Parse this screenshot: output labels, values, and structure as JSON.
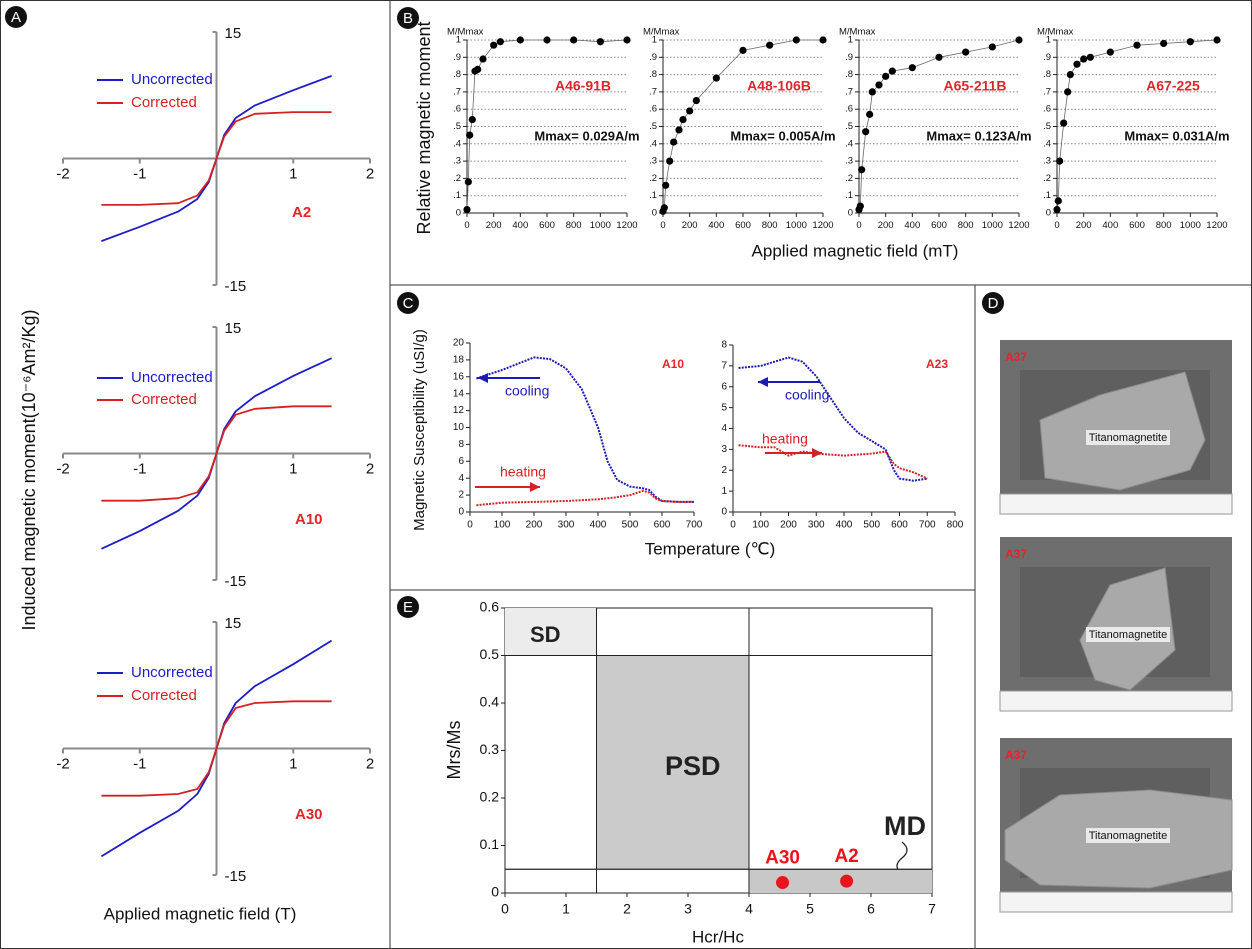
{
  "panel_labels": [
    "A",
    "B",
    "C",
    "D",
    "E"
  ],
  "chart_data": [
    {
      "type": "line",
      "axes": "crossing",
      "legend": "line",
      "sample": "A2",
      "ylabel": "Induced magnetic moment(10⁻⁶Am²/Kg)",
      "xlabel": "Applied magnetic field (T)",
      "xlim": [
        -2,
        2
      ],
      "ylim": [
        -15,
        15
      ],
      "xticks": [
        -2,
        -1,
        1,
        2
      ],
      "yticks": [
        -15,
        15
      ],
      "x": [
        -1.5,
        -1,
        -0.5,
        -0.25,
        -0.1,
        0,
        0.1,
        0.25,
        0.5,
        1,
        1.5
      ],
      "series": [
        {
          "name": "Uncorrected",
          "color": "#1c1cc8",
          "values": [
            -9.8,
            -8.1,
            -6.3,
            -4.8,
            -2.8,
            0,
            2.8,
            4.8,
            6.3,
            8.1,
            9.8
          ]
        },
        {
          "name": "Corrected",
          "color": "#d42222",
          "values": [
            -5.5,
            -5.5,
            -5.3,
            -4.4,
            -2.6,
            0,
            2.6,
            4.4,
            5.3,
            5.5,
            5.5
          ]
        }
      ]
    },
    {
      "type": "line",
      "axes": "crossing",
      "legend": "line",
      "sample": "A10",
      "xlim": [
        -2,
        2
      ],
      "ylim": [
        -15,
        15
      ],
      "xticks": [
        -2,
        -1,
        1,
        2
      ],
      "yticks": [
        -15,
        15
      ],
      "x": [
        -1.5,
        -1,
        -0.5,
        -0.25,
        -0.1,
        0,
        0.1,
        0.25,
        0.5,
        1,
        1.5
      ],
      "series": [
        {
          "name": "Uncorrected",
          "color": "#1c1cc8",
          "values": [
            -11.3,
            -9.2,
            -6.8,
            -5.0,
            -2.9,
            0,
            2.9,
            5.0,
            6.8,
            9.2,
            11.3
          ]
        },
        {
          "name": "Corrected",
          "color": "#d42222",
          "values": [
            -5.6,
            -5.6,
            -5.3,
            -4.6,
            -2.7,
            0,
            2.7,
            4.6,
            5.3,
            5.6,
            5.6
          ]
        }
      ]
    },
    {
      "type": "line",
      "axes": "crossing",
      "legend": "line",
      "sample": "A30",
      "xlim": [
        -2,
        2
      ],
      "ylim": [
        -15,
        15
      ],
      "xticks": [
        -2,
        -1,
        1,
        2
      ],
      "yticks": [
        -15,
        15
      ],
      "x": [
        -1.5,
        -1,
        -0.5,
        -0.25,
        -0.1,
        0,
        0.1,
        0.25,
        0.5,
        1,
        1.5
      ],
      "series": [
        {
          "name": "Uncorrected",
          "color": "#1c1cc8",
          "values": [
            -12.8,
            -10,
            -7.4,
            -5.4,
            -3,
            0,
            3,
            5.4,
            7.4,
            10,
            12.8
          ]
        },
        {
          "name": "Corrected",
          "color": "#d42222",
          "values": [
            -5.6,
            -5.6,
            -5.4,
            -4.8,
            -2.8,
            0,
            2.8,
            4.8,
            5.4,
            5.6,
            5.6
          ]
        }
      ]
    },
    {
      "type": "line",
      "axes": "left-bottom",
      "grid": true,
      "markers": true,
      "y_unit": "M/Mmax",
      "sample": "A46-91B",
      "note": "Mmax= 0.029A/m",
      "ylabel": "Relative magnetic moment",
      "xlabel": "Applied magnetic field (mT)",
      "xlim": [
        0,
        1200
      ],
      "ylim": [
        0,
        1
      ],
      "xticks": [
        0,
        200,
        400,
        600,
        800,
        1000,
        1200
      ],
      "yticks": [
        0,
        {
          "value": 0.1,
          "label": ".1"
        },
        {
          "value": 0.2,
          "label": ".2"
        },
        {
          "value": 0.3,
          "label": ".3"
        },
        {
          "value": 0.4,
          "label": ".4"
        },
        {
          "value": 0.5,
          "label": ".5"
        },
        {
          "value": 0.6,
          "label": ".6"
        },
        {
          "value": 0.7,
          "label": ".7"
        },
        {
          "value": 0.8,
          "label": ".8"
        },
        {
          "value": 0.9,
          "label": ".9"
        },
        1
      ],
      "x": [
        0,
        10,
        20,
        40,
        60,
        80,
        120,
        200,
        250,
        400,
        600,
        800,
        1000,
        1200
      ],
      "series": [
        {
          "color": "#000000",
          "values": [
            0.02,
            0.18,
            0.45,
            0.54,
            0.82,
            0.83,
            0.89,
            0.97,
            0.99,
            1,
            1,
            1,
            0.99,
            1
          ]
        }
      ]
    },
    {
      "type": "line",
      "axes": "left-bottom",
      "grid": true,
      "markers": true,
      "y_unit": "M/Mmax",
      "sample": "A48-106B",
      "note": "Mmax= 0.005A/m",
      "xlim": [
        0,
        1200
      ],
      "ylim": [
        0,
        1
      ],
      "xticks": [
        0,
        200,
        400,
        600,
        800,
        1000,
        1200
      ],
      "yticks": [
        0,
        {
          "value": 0.1,
          "label": ".1"
        },
        {
          "value": 0.2,
          "label": ".2"
        },
        {
          "value": 0.3,
          "label": ".3"
        },
        {
          "value": 0.4,
          "label": ".4"
        },
        {
          "value": 0.5,
          "label": ".5"
        },
        {
          "value": 0.6,
          "label": ".6"
        },
        {
          "value": 0.7,
          "label": ".7"
        },
        {
          "value": 0.8,
          "label": ".8"
        },
        {
          "value": 0.9,
          "label": ".9"
        },
        1
      ],
      "x": [
        0,
        10,
        20,
        50,
        80,
        120,
        150,
        200,
        250,
        400,
        600,
        800,
        1000,
        1200
      ],
      "series": [
        {
          "color": "#000000",
          "values": [
            0.01,
            0.03,
            0.16,
            0.3,
            0.41,
            0.48,
            0.54,
            0.59,
            0.65,
            0.78,
            0.94,
            0.97,
            1,
            1
          ]
        }
      ]
    },
    {
      "type": "line",
      "axes": "left-bottom",
      "grid": true,
      "markers": true,
      "y_unit": "M/Mmax",
      "sample": "A65-211B",
      "note": "Mmax= 0.123A/m",
      "xlim": [
        0,
        1200
      ],
      "ylim": [
        0,
        1
      ],
      "xticks": [
        0,
        200,
        400,
        600,
        800,
        1000,
        1200
      ],
      "yticks": [
        0,
        {
          "value": 0.1,
          "label": ".1"
        },
        {
          "value": 0.2,
          "label": ".2"
        },
        {
          "value": 0.3,
          "label": ".3"
        },
        {
          "value": 0.4,
          "label": ".4"
        },
        {
          "value": 0.5,
          "label": ".5"
        },
        {
          "value": 0.6,
          "label": ".6"
        },
        {
          "value": 0.7,
          "label": ".7"
        },
        {
          "value": 0.8,
          "label": ".8"
        },
        {
          "value": 0.9,
          "label": ".9"
        },
        1
      ],
      "x": [
        0,
        10,
        20,
        50,
        80,
        100,
        150,
        200,
        250,
        400,
        600,
        800,
        1000,
        1200
      ],
      "series": [
        {
          "color": "#000000",
          "values": [
            0.02,
            0.04,
            0.25,
            0.47,
            0.57,
            0.7,
            0.74,
            0.79,
            0.82,
            0.84,
            0.9,
            0.93,
            0.96,
            1
          ]
        }
      ]
    },
    {
      "type": "line",
      "axes": "left-bottom",
      "grid": true,
      "markers": true,
      "y_unit": "M/Mmax",
      "sample": "A67-225",
      "note": "Mmax= 0.031A/m",
      "xlim": [
        0,
        1200
      ],
      "ylim": [
        0,
        1
      ],
      "xticks": [
        0,
        200,
        400,
        600,
        800,
        1000,
        1200
      ],
      "yticks": [
        0,
        {
          "value": 0.1,
          "label": ".1"
        },
        {
          "value": 0.2,
          "label": ".2"
        },
        {
          "value": 0.3,
          "label": ".3"
        },
        {
          "value": 0.4,
          "label": ".4"
        },
        {
          "value": 0.5,
          "label": ".5"
        },
        {
          "value": 0.6,
          "label": ".6"
        },
        {
          "value": 0.7,
          "label": ".7"
        },
        {
          "value": 0.8,
          "label": ".8"
        },
        {
          "value": 0.9,
          "label": ".9"
        },
        1
      ],
      "x": [
        0,
        10,
        20,
        50,
        80,
        100,
        150,
        200,
        250,
        400,
        600,
        800,
        1000,
        1200
      ],
      "series": [
        {
          "color": "#000000",
          "values": [
            0.02,
            0.07,
            0.3,
            0.52,
            0.7,
            0.8,
            0.86,
            0.89,
            0.9,
            0.93,
            0.97,
            0.98,
            0.99,
            1
          ]
        }
      ]
    },
    {
      "type": "line",
      "axes": "left-bottom",
      "legend": "arrow",
      "sample": "A10",
      "ylabel": "Magnetic Susceptibility (uSI/g)",
      "xlabel": "Temperature (℃)",
      "xlim": [
        0,
        700
      ],
      "ylim": [
        0,
        20
      ],
      "xticks": [
        0,
        100,
        200,
        300,
        400,
        500,
        600,
        700
      ],
      "yticks": [
        0,
        2,
        4,
        6,
        8,
        10,
        12,
        14,
        16,
        18,
        20
      ],
      "series": [
        {
          "name": "cooling",
          "color": "#1a1ab4",
          "x": [
            20,
            100,
            200,
            250,
            300,
            350,
            400,
            430,
            460,
            500,
            540,
            560,
            580,
            600,
            650,
            700
          ],
          "values": [
            15.8,
            16.8,
            18.3,
            18.1,
            17,
            14.5,
            10,
            6,
            3.8,
            3,
            2.8,
            2.6,
            1.8,
            1.3,
            1.2,
            1.2
          ]
        },
        {
          "name": "heating",
          "color": "#d42222",
          "x": [
            20,
            100,
            200,
            300,
            400,
            450,
            500,
            540,
            560,
            580,
            600,
            650,
            700
          ],
          "values": [
            0.8,
            1.1,
            1.2,
            1.3,
            1.5,
            1.7,
            2.0,
            2.5,
            2.3,
            1.6,
            1.3,
            1.2,
            1.2
          ]
        }
      ]
    },
    {
      "type": "line",
      "axes": "left-bottom",
      "legend": "arrow",
      "sample": "A23",
      "xlim": [
        0,
        800
      ],
      "ylim": [
        0,
        8
      ],
      "xticks": [
        0,
        100,
        200,
        300,
        400,
        500,
        600,
        700,
        800
      ],
      "yticks": [
        0,
        1,
        2,
        3,
        4,
        5,
        6,
        7,
        8
      ],
      "series": [
        {
          "name": "cooling",
          "color": "#1a1ab4",
          "x": [
            20,
            100,
            150,
            200,
            250,
            300,
            350,
            400,
            450,
            500,
            550,
            580,
            600,
            650,
            700
          ],
          "values": [
            6.9,
            7.0,
            7.2,
            7.4,
            7.2,
            6.5,
            5.5,
            4.5,
            3.8,
            3.4,
            3.0,
            2.0,
            1.6,
            1.5,
            1.6
          ]
        },
        {
          "name": "heating",
          "color": "#d42222",
          "x": [
            20,
            100,
            150,
            200,
            250,
            300,
            400,
            500,
            550,
            580,
            600,
            650,
            700
          ],
          "values": [
            3.2,
            3.1,
            3.1,
            2.7,
            2.9,
            2.8,
            2.7,
            2.8,
            2.9,
            2.3,
            2.1,
            1.9,
            1.6
          ]
        }
      ]
    },
    {
      "type": "scatter",
      "axes": "box",
      "ylabel": "Mrs/Ms",
      "xlabel": "Hcr/Hc",
      "xlim": [
        0,
        7
      ],
      "ylim": [
        0,
        0.6
      ],
      "xticks": [
        0,
        1,
        2,
        3,
        4,
        5,
        6,
        7
      ],
      "yticks": [
        0,
        0.1,
        0.2,
        0.3,
        0.4,
        0.5,
        0.6
      ],
      "regions": [
        {
          "name": "SD",
          "xrange": [
            0,
            1.5
          ],
          "yrange": [
            0.5,
            0.6
          ],
          "color": "#ececec"
        },
        {
          "name": "PSD",
          "xrange": [
            1.5,
            4
          ],
          "yrange": [
            0.05,
            0.5
          ],
          "color": "#cbcbcb"
        },
        {
          "name": "MD",
          "xrange": [
            4,
            7
          ],
          "yrange": [
            0,
            0.05
          ],
          "color": "#c8c8c8"
        }
      ],
      "x": [
        4.55,
        5.6
      ],
      "values": [
        0.022,
        0.025
      ],
      "point_labels": [
        "A30",
        "A2"
      ],
      "color": "#e8161b"
    }
  ],
  "images": [
    {
      "sample": "A37",
      "mineral": "Titanomagnetite"
    },
    {
      "sample": "A37",
      "mineral": "Titanomagnetite"
    },
    {
      "sample": "A37",
      "mineral": "Titanomagnetite"
    }
  ]
}
